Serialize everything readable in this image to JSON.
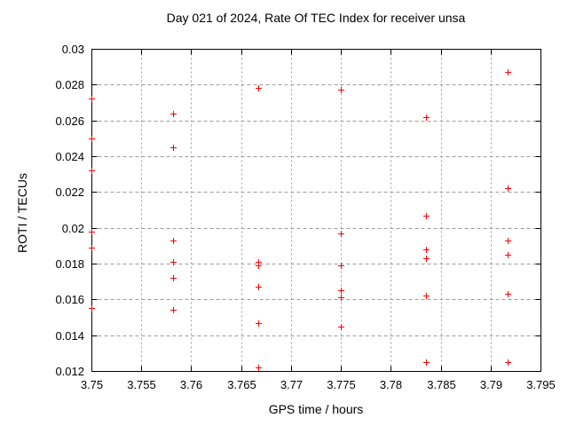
{
  "chart_data": {
    "type": "scatter",
    "title": "Day 021 of 2024, Rate Of TEC Index for receiver unsa",
    "xlabel": "GPS time / hours",
    "ylabel": "ROTI / TECUs",
    "xlim": [
      3.75,
      3.795
    ],
    "ylim": [
      0.012,
      0.03
    ],
    "xtick_labels": [
      "3.75",
      "3.755",
      "3.76",
      "3.765",
      "3.77",
      "3.775",
      "3.78",
      "3.785",
      "3.79",
      "3.795"
    ],
    "ytick_labels": [
      "0.012",
      "0.014",
      "0.016",
      "0.018",
      "0.02",
      "0.022",
      "0.024",
      "0.026",
      "0.028",
      "0.03"
    ],
    "grid": true,
    "legend": "none",
    "marker": "plus",
    "marker_color": "#ff0000",
    "grid_color": "#9c9c9c",
    "axis_color": "#000000",
    "background_color": "#ffffff",
    "series": [
      {
        "name": "ROTI",
        "points": [
          [
            3.75,
            0.0272
          ],
          [
            3.75,
            0.025
          ],
          [
            3.75,
            0.0232
          ],
          [
            3.75,
            0.0198
          ],
          [
            3.75,
            0.0189
          ],
          [
            3.75,
            0.0155
          ],
          [
            3.7582,
            0.0264
          ],
          [
            3.7582,
            0.0245
          ],
          [
            3.7582,
            0.0193
          ],
          [
            3.7582,
            0.0181
          ],
          [
            3.7582,
            0.0172
          ],
          [
            3.7582,
            0.0154
          ],
          [
            3.7667,
            0.0278
          ],
          [
            3.7667,
            0.0181
          ],
          [
            3.7667,
            0.0179
          ],
          [
            3.7667,
            0.0167
          ],
          [
            3.7667,
            0.0147
          ],
          [
            3.7667,
            0.0122
          ],
          [
            3.775,
            0.0277
          ],
          [
            3.775,
            0.0197
          ],
          [
            3.775,
            0.0179
          ],
          [
            3.775,
            0.0165
          ],
          [
            3.775,
            0.0161
          ],
          [
            3.775,
            0.0145
          ],
          [
            3.7835,
            0.0262
          ],
          [
            3.7835,
            0.0207
          ],
          [
            3.7835,
            0.0188
          ],
          [
            3.7835,
            0.0183
          ],
          [
            3.7835,
            0.0162
          ],
          [
            3.7835,
            0.0125
          ],
          [
            3.7917,
            0.0287
          ],
          [
            3.7917,
            0.0222
          ],
          [
            3.7917,
            0.0193
          ],
          [
            3.7917,
            0.0185
          ],
          [
            3.7917,
            0.0163
          ],
          [
            3.7917,
            0.0125
          ]
        ]
      }
    ]
  }
}
